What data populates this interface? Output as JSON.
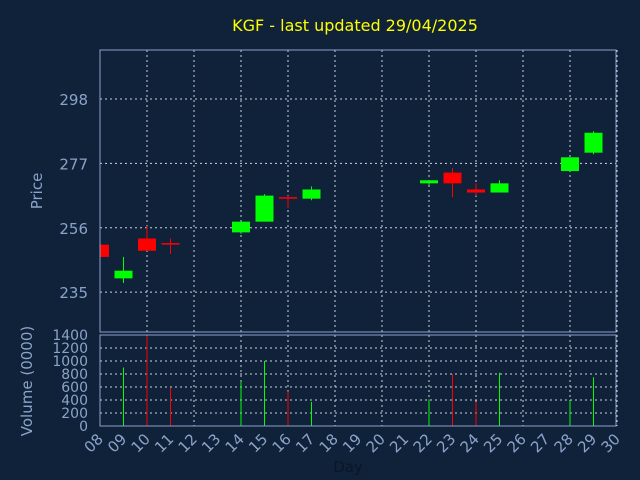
{
  "chart_data": [
    {
      "type": "candlestick",
      "title": "KGF - last updated 29/04/2025",
      "ylabel": "Price",
      "ylim": [
        222,
        314
      ],
      "yticks": [
        235,
        256,
        277,
        298
      ],
      "grid": true,
      "colors": {
        "up": "#00ff00",
        "down": "#ff0000",
        "text": "#8aa4c9",
        "title": "#ffff00",
        "background": "#10213a"
      },
      "x": [
        "08",
        "09",
        "10",
        "11",
        "14",
        "15",
        "16",
        "17",
        "22",
        "23",
        "24",
        "25",
        "28",
        "29"
      ],
      "candles": [
        {
          "day": "08",
          "open": 250.5,
          "high": 251.0,
          "low": 246.5,
          "close": 246.5
        },
        {
          "day": "09",
          "open": 239.5,
          "high": 246.5,
          "low": 238.0,
          "close": 242.0
        },
        {
          "day": "10",
          "open": 252.5,
          "high": 256.5,
          "low": 248.5,
          "close": 248.5
        },
        {
          "day": "11",
          "open": 251.0,
          "high": 252.5,
          "low": 247.5,
          "close": 250.5
        },
        {
          "day": "14",
          "open": 254.5,
          "high": 258.0,
          "low": 254.0,
          "close": 258.0
        },
        {
          "day": "15",
          "open": 258.0,
          "high": 267.0,
          "low": 258.0,
          "close": 266.5
        },
        {
          "day": "16",
          "open": 266.0,
          "high": 266.5,
          "low": 262.5,
          "close": 265.5
        },
        {
          "day": "17",
          "open": 265.5,
          "high": 269.5,
          "low": 265.0,
          "close": 268.5
        },
        {
          "day": "22",
          "open": 270.5,
          "high": 271.5,
          "low": 270.0,
          "close": 271.5
        },
        {
          "day": "23",
          "open": 274.0,
          "high": 275.5,
          "low": 266.0,
          "close": 270.5
        },
        {
          "day": "24",
          "open": 268.5,
          "high": 270.5,
          "low": 266.5,
          "close": 267.5
        },
        {
          "day": "25",
          "open": 267.5,
          "high": 271.5,
          "low": 267.5,
          "close": 270.5
        },
        {
          "day": "28",
          "open": 274.5,
          "high": 279.0,
          "low": 274.5,
          "close": 279.0
        },
        {
          "day": "29",
          "open": 280.5,
          "high": 287.5,
          "low": 280.0,
          "close": 287.0
        }
      ]
    },
    {
      "type": "bar",
      "xlabel": "Day",
      "ylabel": "Volume (0000)",
      "ylim": [
        0,
        1400
      ],
      "yticks": [
        0,
        200,
        400,
        600,
        800,
        1000,
        1200,
        1400
      ],
      "grid": true,
      "xticks": [
        "08",
        "09",
        "10",
        "11",
        "12",
        "13",
        "14",
        "15",
        "16",
        "17",
        "18",
        "19",
        "20",
        "21",
        "22",
        "23",
        "24",
        "25",
        "26",
        "27",
        "28",
        "29",
        "30"
      ],
      "volumes": [
        {
          "day": "09",
          "value": 900
        },
        {
          "day": "10",
          "value": 1390
        },
        {
          "day": "11",
          "value": 590
        },
        {
          "day": "14",
          "value": 680
        },
        {
          "day": "15",
          "value": 1000
        },
        {
          "day": "16",
          "value": 530
        },
        {
          "day": "17",
          "value": 370
        },
        {
          "day": "22",
          "value": 410
        },
        {
          "day": "23",
          "value": 800
        },
        {
          "day": "24",
          "value": 370
        },
        {
          "day": "25",
          "value": 820
        },
        {
          "day": "28",
          "value": 390
        },
        {
          "day": "29",
          "value": 750
        }
      ]
    }
  ]
}
